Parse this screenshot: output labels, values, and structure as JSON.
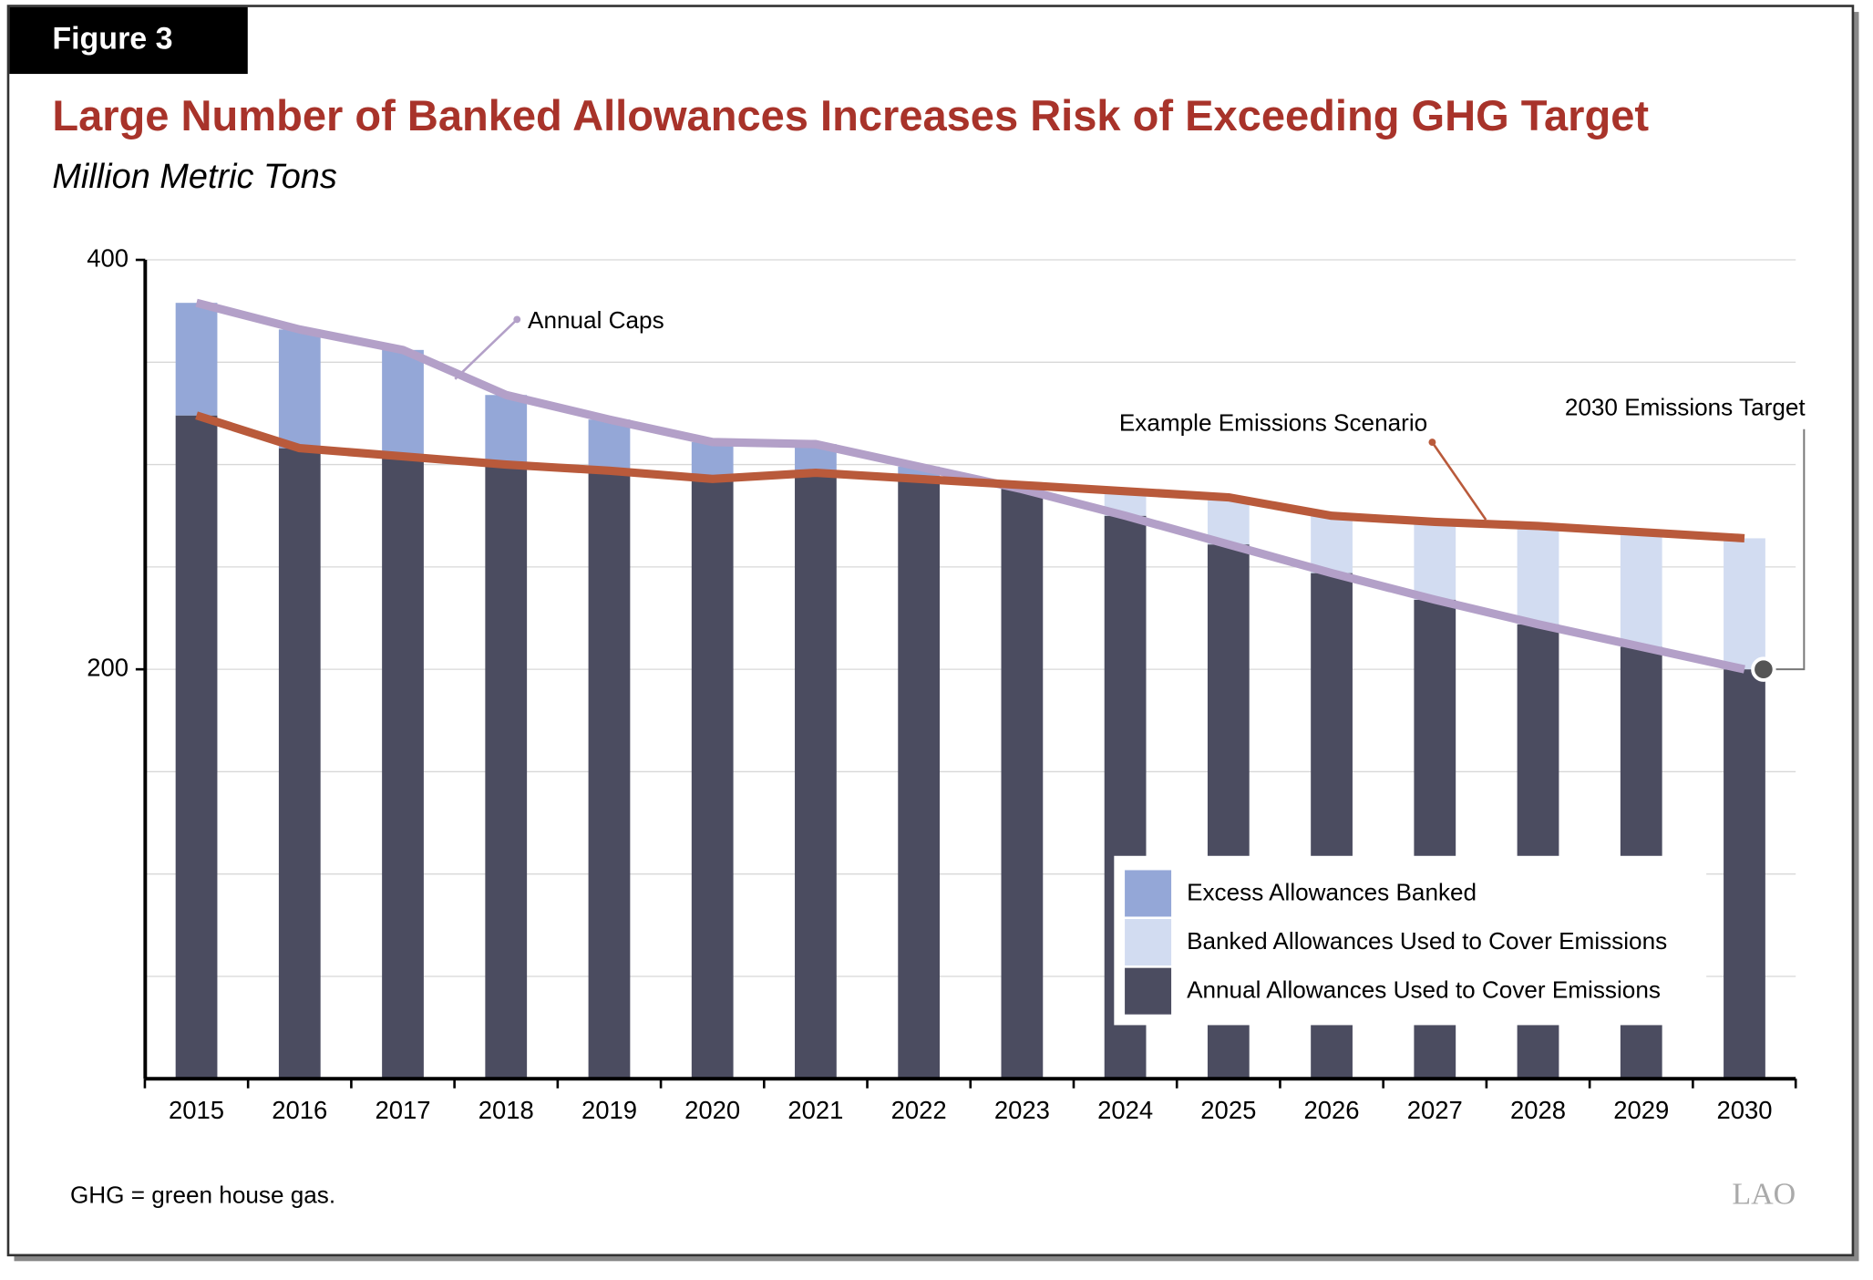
{
  "figure_label": "Figure 3",
  "footnote": "GHG = green house gas.",
  "logo": "LAO",
  "chart_data": {
    "type": "bar",
    "title": "Large Number of Banked Allowances Increases Risk of Exceeding GHG Target",
    "subtitle": "Million Metric Tons",
    "categories": [
      "2015",
      "2016",
      "2017",
      "2018",
      "2019",
      "2020",
      "2021",
      "2022",
      "2023",
      "2024",
      "2025",
      "2026",
      "2027",
      "2028",
      "2029",
      "2030"
    ],
    "ylim": [
      0,
      400
    ],
    "yticks": [
      200,
      400
    ],
    "grid_lines": [
      50,
      100,
      150,
      200,
      250,
      300,
      350,
      400
    ],
    "series": [
      {
        "name": "Annual Allowances Used to Cover Emissions",
        "color": "#4b4c60",
        "values": [
          324,
          308,
          304,
          300,
          297,
          293,
          296,
          293,
          290,
          275,
          261,
          247,
          234,
          222,
          211,
          200
        ]
      },
      {
        "name": "Excess Allowances Banked",
        "color": "#94a7d7",
        "values": [
          55,
          58,
          52,
          34,
          25,
          18,
          14,
          6,
          0,
          0,
          0,
          0,
          0,
          0,
          0,
          0
        ]
      },
      {
        "name": "Banked Allowances Used to Cover Emissions",
        "color": "#d2dcf1",
        "values": [
          0,
          0,
          0,
          0,
          0,
          0,
          0,
          0,
          0,
          12,
          23,
          28,
          38,
          48,
          56,
          64
        ]
      }
    ],
    "lines": [
      {
        "name": "Annual Caps",
        "color": "#b3a0c8",
        "values": [
          379,
          366,
          356,
          334,
          322,
          311,
          310,
          299,
          288,
          275,
          261,
          247,
          234,
          222,
          211,
          200
        ]
      },
      {
        "name": "Example Emissions Scenario",
        "color": "#b95a3b",
        "values": [
          324,
          308,
          304,
          300,
          297,
          293,
          296,
          293,
          290,
          287,
          284,
          275,
          272,
          270,
          267,
          264
        ]
      }
    ],
    "annotations": [
      "2030 Emissions Target"
    ]
  }
}
